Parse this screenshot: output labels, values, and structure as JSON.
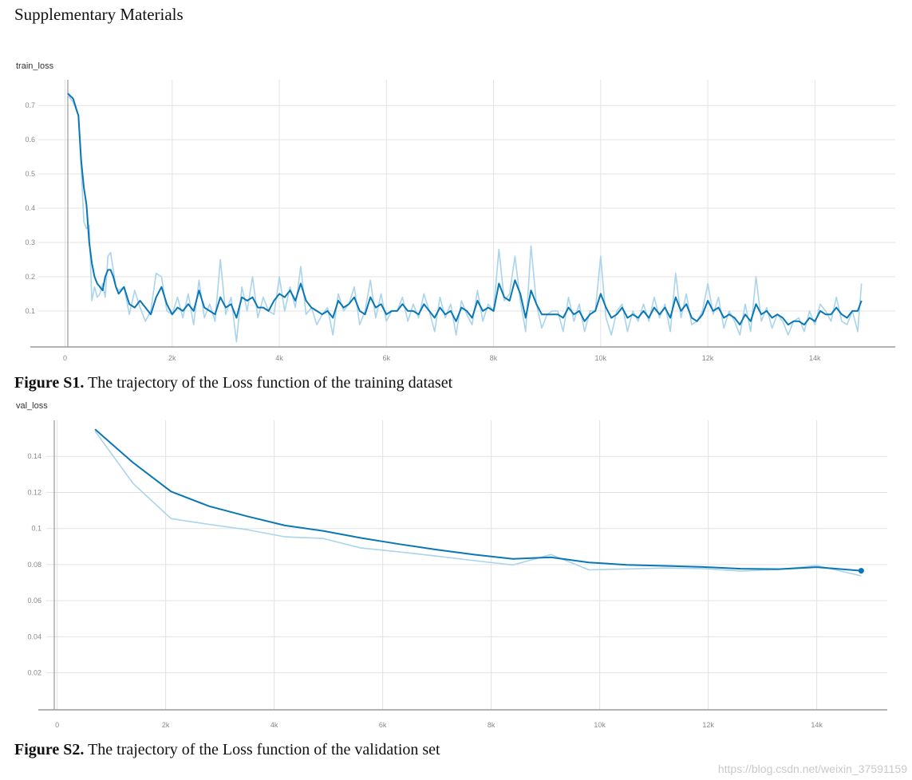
{
  "page": {
    "heading": "Supplementary Materials",
    "watermark": "https://blog.csdn.net/weixin_37591159"
  },
  "figures": [
    {
      "caption_label": "Figure S1.",
      "caption_text": "The trajectory of the Loss function of the training dataset"
    },
    {
      "caption_label": "Figure S2.",
      "caption_text": "The trajectory of the Loss function of the validation set"
    }
  ],
  "colors": {
    "smoothed": "#0a77b5",
    "raw": "#a9d4ec",
    "grid": "#e3e3e3",
    "axis": "#9a9a9a"
  },
  "chart_data": [
    {
      "type": "line",
      "title": "train_loss",
      "xlabel": "",
      "ylabel": "",
      "xlim": [
        -500,
        15500
      ],
      "ylim": [
        -0.005,
        0.775
      ],
      "x_ticks": [
        0,
        2000,
        4000,
        6000,
        8000,
        10000,
        12000,
        14000
      ],
      "x_tick_labels": [
        "0",
        "2k",
        "4k",
        "6k",
        "8k",
        "10k",
        "12k",
        "14k"
      ],
      "y_ticks": [
        0.1,
        0.2,
        0.3,
        0.4,
        0.5,
        0.6,
        0.7
      ],
      "y_tick_labels": [
        "0.1",
        "0.2",
        "0.3",
        "0.4",
        "0.5",
        "0.6",
        "0.7"
      ],
      "series": [
        {
          "name": "raw",
          "x": [
            50,
            150,
            250,
            300,
            350,
            400,
            450,
            500,
            550,
            600,
            650,
            700,
            750,
            800,
            850,
            900,
            950,
            1000,
            1100,
            1200,
            1300,
            1400,
            1500,
            1600,
            1700,
            1800,
            1900,
            2000,
            2100,
            2200,
            2300,
            2400,
            2500,
            2600,
            2700,
            2800,
            2900,
            3000,
            3100,
            3200,
            3300,
            3400,
            3500,
            3600,
            3700,
            3800,
            3900,
            4000,
            4100,
            4200,
            4300,
            4400,
            4500,
            4600,
            4700,
            4800,
            4900,
            5000,
            5100,
            5200,
            5300,
            5400,
            5500,
            5600,
            5700,
            5800,
            5900,
            6000,
            6100,
            6200,
            6300,
            6400,
            6500,
            6600,
            6700,
            6800,
            6900,
            7000,
            7100,
            7200,
            7300,
            7400,
            7500,
            7600,
            7700,
            7800,
            7900,
            8000,
            8100,
            8200,
            8300,
            8400,
            8500,
            8600,
            8700,
            8800,
            8900,
            9000,
            9100,
            9200,
            9300,
            9400,
            9500,
            9600,
            9700,
            9800,
            9900,
            10000,
            10100,
            10200,
            10300,
            10400,
            10500,
            10600,
            10700,
            10800,
            10900,
            11000,
            11100,
            11200,
            11300,
            11400,
            11500,
            11600,
            11700,
            11800,
            11900,
            12000,
            12100,
            12200,
            12300,
            12400,
            12500,
            12600,
            12700,
            12800,
            12900,
            13000,
            13100,
            13200,
            13300,
            13400,
            13500,
            13600,
            13700,
            13800,
            13900,
            14000,
            14100,
            14200,
            14300,
            14400,
            14500,
            14600,
            14700,
            14800,
            14870
          ],
          "y": [
            0.73,
            0.71,
            0.67,
            0.52,
            0.36,
            0.34,
            0.35,
            0.13,
            0.17,
            0.14,
            0.15,
            0.18,
            0.14,
            0.26,
            0.27,
            0.22,
            0.17,
            0.16,
            0.17,
            0.09,
            0.16,
            0.11,
            0.07,
            0.1,
            0.21,
            0.2,
            0.1,
            0.09,
            0.14,
            0.08,
            0.15,
            0.06,
            0.19,
            0.08,
            0.12,
            0.07,
            0.25,
            0.09,
            0.14,
            0.01,
            0.17,
            0.1,
            0.2,
            0.08,
            0.14,
            0.1,
            0.09,
            0.2,
            0.1,
            0.17,
            0.11,
            0.23,
            0.09,
            0.11,
            0.06,
            0.09,
            0.11,
            0.03,
            0.15,
            0.1,
            0.12,
            0.17,
            0.06,
            0.1,
            0.19,
            0.08,
            0.15,
            0.07,
            0.1,
            0.1,
            0.14,
            0.07,
            0.12,
            0.08,
            0.15,
            0.1,
            0.04,
            0.14,
            0.08,
            0.12,
            0.03,
            0.13,
            0.09,
            0.06,
            0.16,
            0.07,
            0.12,
            0.1,
            0.28,
            0.13,
            0.15,
            0.26,
            0.13,
            0.04,
            0.29,
            0.12,
            0.05,
            0.09,
            0.1,
            0.1,
            0.04,
            0.14,
            0.07,
            0.12,
            0.04,
            0.1,
            0.1,
            0.26,
            0.08,
            0.03,
            0.1,
            0.12,
            0.04,
            0.1,
            0.07,
            0.12,
            0.07,
            0.14,
            0.08,
            0.12,
            0.04,
            0.21,
            0.08,
            0.15,
            0.06,
            0.07,
            0.1,
            0.18,
            0.09,
            0.14,
            0.05,
            0.1,
            0.07,
            0.03,
            0.12,
            0.04,
            0.2,
            0.07,
            0.11,
            0.05,
            0.09,
            0.07,
            0.03,
            0.07,
            0.08,
            0.04,
            0.1,
            0.06,
            0.12,
            0.1,
            0.07,
            0.14,
            0.07,
            0.06,
            0.1,
            0.04,
            0.18
          ]
        },
        {
          "name": "smoothed",
          "x": [
            50,
            150,
            250,
            300,
            350,
            400,
            450,
            500,
            550,
            600,
            650,
            700,
            750,
            800,
            850,
            900,
            950,
            1000,
            1100,
            1200,
            1300,
            1400,
            1500,
            1600,
            1700,
            1800,
            1900,
            2000,
            2100,
            2200,
            2300,
            2400,
            2500,
            2600,
            2700,
            2800,
            2900,
            3000,
            3100,
            3200,
            3300,
            3400,
            3500,
            3600,
            3700,
            3800,
            3900,
            4000,
            4100,
            4200,
            4300,
            4400,
            4500,
            4600,
            4700,
            4800,
            4900,
            5000,
            5100,
            5200,
            5300,
            5400,
            5500,
            5600,
            5700,
            5800,
            5900,
            6000,
            6100,
            6200,
            6300,
            6400,
            6500,
            6600,
            6700,
            6800,
            6900,
            7000,
            7100,
            7200,
            7300,
            7400,
            7500,
            7600,
            7700,
            7800,
            7900,
            8000,
            8100,
            8200,
            8300,
            8400,
            8500,
            8600,
            8700,
            8800,
            8900,
            9000,
            9100,
            9200,
            9300,
            9400,
            9500,
            9600,
            9700,
            9800,
            9900,
            10000,
            10100,
            10200,
            10300,
            10400,
            10500,
            10600,
            10700,
            10800,
            10900,
            11000,
            11100,
            11200,
            11300,
            11400,
            11500,
            11600,
            11700,
            11800,
            11900,
            12000,
            12100,
            12200,
            12300,
            12400,
            12500,
            12600,
            12700,
            12800,
            12900,
            13000,
            13100,
            13200,
            13300,
            13400,
            13500,
            13600,
            13700,
            13800,
            13900,
            14000,
            14100,
            14200,
            14300,
            14400,
            14500,
            14600,
            14700,
            14800,
            14870
          ],
          "y": [
            0.735,
            0.72,
            0.67,
            0.54,
            0.46,
            0.41,
            0.3,
            0.24,
            0.2,
            0.18,
            0.17,
            0.16,
            0.2,
            0.22,
            0.22,
            0.2,
            0.17,
            0.15,
            0.17,
            0.12,
            0.11,
            0.13,
            0.11,
            0.09,
            0.14,
            0.17,
            0.12,
            0.09,
            0.11,
            0.1,
            0.12,
            0.1,
            0.16,
            0.11,
            0.1,
            0.09,
            0.14,
            0.11,
            0.12,
            0.08,
            0.14,
            0.13,
            0.14,
            0.11,
            0.11,
            0.1,
            0.13,
            0.15,
            0.14,
            0.16,
            0.13,
            0.18,
            0.13,
            0.11,
            0.1,
            0.09,
            0.1,
            0.08,
            0.13,
            0.11,
            0.12,
            0.14,
            0.1,
            0.09,
            0.14,
            0.11,
            0.12,
            0.09,
            0.1,
            0.1,
            0.12,
            0.1,
            0.1,
            0.09,
            0.12,
            0.1,
            0.08,
            0.11,
            0.09,
            0.1,
            0.07,
            0.11,
            0.1,
            0.08,
            0.13,
            0.1,
            0.11,
            0.1,
            0.18,
            0.14,
            0.13,
            0.19,
            0.15,
            0.08,
            0.16,
            0.12,
            0.09,
            0.09,
            0.09,
            0.09,
            0.08,
            0.11,
            0.09,
            0.1,
            0.07,
            0.09,
            0.1,
            0.15,
            0.11,
            0.08,
            0.09,
            0.11,
            0.08,
            0.09,
            0.08,
            0.1,
            0.08,
            0.11,
            0.09,
            0.11,
            0.08,
            0.14,
            0.1,
            0.12,
            0.08,
            0.07,
            0.09,
            0.13,
            0.1,
            0.11,
            0.08,
            0.09,
            0.08,
            0.06,
            0.09,
            0.07,
            0.12,
            0.09,
            0.1,
            0.08,
            0.09,
            0.08,
            0.06,
            0.07,
            0.07,
            0.06,
            0.08,
            0.07,
            0.1,
            0.09,
            0.09,
            0.11,
            0.09,
            0.08,
            0.1,
            0.1,
            0.13
          ]
        }
      ]
    },
    {
      "type": "line",
      "title": "val_loss",
      "xlabel": "",
      "ylabel": "",
      "xlim": [
        -200,
        15300
      ],
      "ylim": [
        -0.0005,
        0.16
      ],
      "x_ticks": [
        0,
        2000,
        4000,
        6000,
        8000,
        10000,
        12000,
        14000
      ],
      "x_tick_labels": [
        "0",
        "2k",
        "4k",
        "6k",
        "8k",
        "10k",
        "12k",
        "14k"
      ],
      "y_ticks": [
        0.02,
        0.04,
        0.06,
        0.08,
        0.1,
        0.12,
        0.14
      ],
      "y_tick_labels": [
        "0.02",
        "0.04",
        "0.06",
        "0.08",
        "0.1",
        "0.12",
        "0.14"
      ],
      "series": [
        {
          "name": "raw",
          "x": [
            700,
            1400,
            2100,
            2800,
            3500,
            4200,
            4900,
            5600,
            6300,
            7000,
            7700,
            8400,
            9100,
            9800,
            10500,
            11200,
            11900,
            12600,
            13300,
            14000,
            14820
          ],
          "y": [
            0.154,
            0.125,
            0.1055,
            0.1023,
            0.0994,
            0.0954,
            0.0945,
            0.0892,
            0.0871,
            0.0847,
            0.0822,
            0.0798,
            0.0856,
            0.0771,
            0.0776,
            0.0781,
            0.0778,
            0.0764,
            0.0773,
            0.0795,
            0.0738
          ]
        },
        {
          "name": "smoothed",
          "x": [
            700,
            1400,
            2100,
            2800,
            3500,
            4200,
            4900,
            5600,
            6300,
            7000,
            7700,
            8400,
            9100,
            9800,
            10500,
            11200,
            11900,
            12600,
            13300,
            14000,
            14820
          ],
          "y": [
            0.155,
            0.1365,
            0.1205,
            0.1124,
            0.1068,
            0.1017,
            0.0987,
            0.0948,
            0.0914,
            0.0883,
            0.0855,
            0.0832,
            0.0841,
            0.0812,
            0.0799,
            0.0793,
            0.0787,
            0.0777,
            0.0775,
            0.0786,
            0.0766
          ]
        }
      ],
      "endpoint": {
        "x": 14820,
        "y": 0.0766
      }
    }
  ]
}
